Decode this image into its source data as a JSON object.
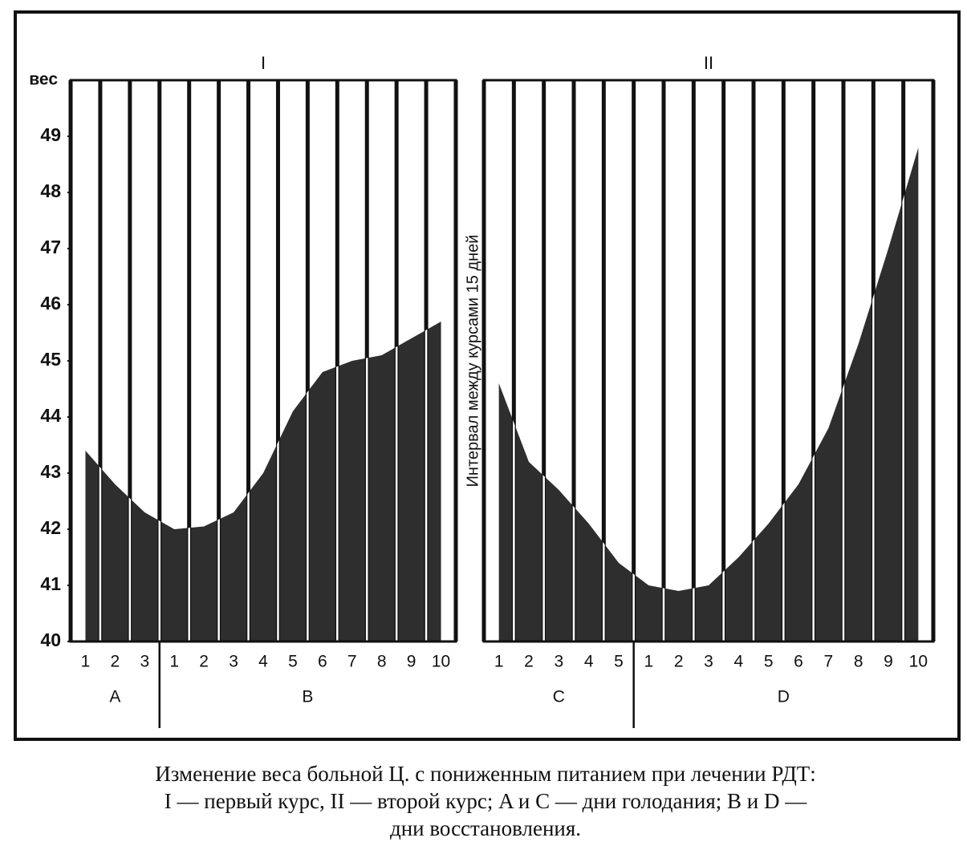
{
  "chart_data": [
    {
      "type": "area",
      "title": "I",
      "y_label": "вес",
      "categories": [
        "1",
        "2",
        "3",
        "1",
        "2",
        "3",
        "4",
        "5",
        "6",
        "7",
        "8",
        "9",
        "10"
      ],
      "groups": [
        "A",
        "B"
      ],
      "values": [
        43.4,
        42.8,
        42.3,
        42.0,
        42.05,
        42.3,
        43.0,
        44.1,
        44.8,
        45.0,
        45.1,
        45.4,
        45.7
      ],
      "color": "#2e2e2e",
      "ylim": [
        40,
        50
      ],
      "yticks": [
        40,
        41,
        42,
        43,
        44,
        45,
        46,
        47,
        48,
        49
      ]
    },
    {
      "type": "area",
      "title": "II",
      "categories": [
        "1",
        "2",
        "3",
        "4",
        "5",
        "1",
        "2",
        "3",
        "4",
        "5",
        "6",
        "7",
        "8",
        "9",
        "10"
      ],
      "groups": [
        "C",
        "D"
      ],
      "values": [
        44.6,
        43.2,
        42.7,
        42.1,
        41.4,
        41.0,
        40.9,
        41.0,
        41.5,
        42.1,
        42.8,
        43.8,
        45.3,
        47.0,
        48.8
      ],
      "color": "#2e2e2e",
      "ylim": [
        40,
        50
      ]
    }
  ],
  "annotation": "Интервал между курсами 15 дней",
  "caption": [
    "Изменение веса больной Ц. с пониженным питанием при лечении РДТ:",
    "I — первый курс, II — второй курс; A и C — дни голодания; B и D —",
    "дни восстановления."
  ]
}
